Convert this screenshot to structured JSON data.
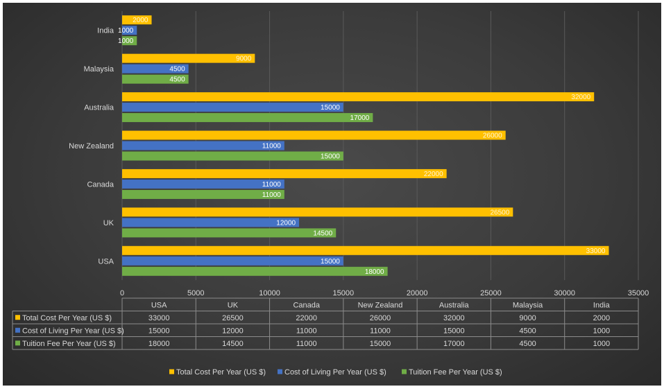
{
  "chart_data": {
    "type": "bar",
    "orientation": "horizontal",
    "categories": [
      "USA",
      "UK",
      "Canada",
      "New Zealand",
      "Australia",
      "Malaysia",
      "India"
    ],
    "series": [
      {
        "name": "Total Cost Per Year (US $)",
        "color": "#ffc000",
        "values": [
          33000,
          26500,
          22000,
          26000,
          32000,
          9000,
          2000
        ]
      },
      {
        "name": "Cost of Living Per Year (US $)",
        "color": "#4472c4",
        "values": [
          15000,
          12000,
          11000,
          11000,
          15000,
          4500,
          1000
        ]
      },
      {
        "name": "Tuition Fee Per Year (US $)",
        "color": "#70ad47",
        "values": [
          18000,
          14500,
          11000,
          15000,
          17000,
          4500,
          1000
        ]
      }
    ],
    "xlim": [
      0,
      35000
    ],
    "xticks": [
      "0",
      "5000",
      "10000",
      "15000",
      "20000",
      "25000",
      "30000",
      "35000"
    ],
    "grid": true,
    "legend": "bottom",
    "data_table": true
  }
}
